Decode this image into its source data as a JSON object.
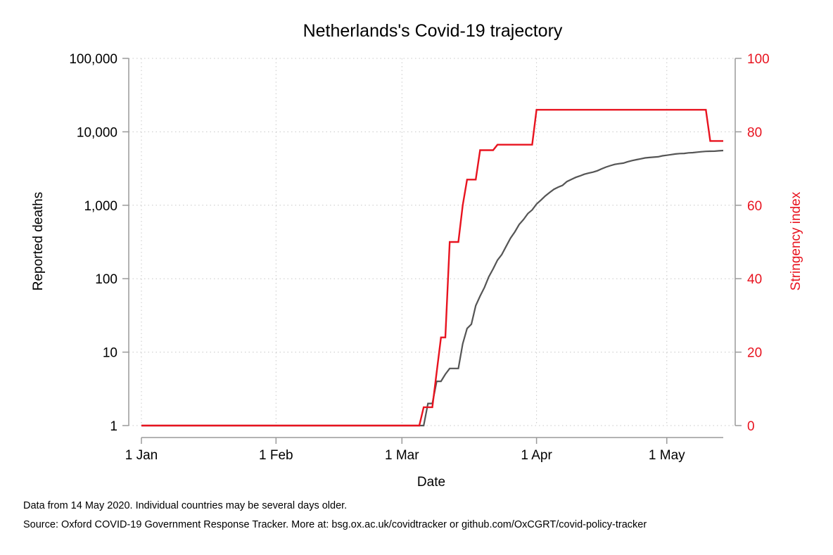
{
  "chart_data": {
    "type": "line",
    "title": "Netherlands's Covid-19 trajectory",
    "xlabel": "Date",
    "ylabel_left": "Reported deaths",
    "ylabel_right": "Stringency index",
    "x_start": "2020-01-01",
    "x_end": "2020-05-14",
    "x_ticks": [
      {
        "date": "2020-01-01",
        "label": "1 Jan"
      },
      {
        "date": "2020-02-01",
        "label": "1 Feb"
      },
      {
        "date": "2020-03-01",
        "label": "1 Mar"
      },
      {
        "date": "2020-04-01",
        "label": "1 Apr"
      },
      {
        "date": "2020-05-01",
        "label": "1 May"
      }
    ],
    "y_left": {
      "scale": "log",
      "range": [
        1,
        100000
      ],
      "ticks": [
        {
          "value": 1,
          "label": "1"
        },
        {
          "value": 10,
          "label": "10"
        },
        {
          "value": 100,
          "label": "100"
        },
        {
          "value": 1000,
          "label": "1,000"
        },
        {
          "value": 10000,
          "label": "10,000"
        },
        {
          "value": 100000,
          "label": "100,000"
        }
      ]
    },
    "y_right": {
      "scale": "linear",
      "range": [
        0,
        100
      ],
      "ticks": [
        {
          "value": 0,
          "label": "0"
        },
        {
          "value": 20,
          "label": "20"
        },
        {
          "value": 40,
          "label": "40"
        },
        {
          "value": 60,
          "label": "60"
        },
        {
          "value": 80,
          "label": "80"
        },
        {
          "value": 100,
          "label": "100"
        }
      ]
    },
    "grid": true,
    "colors": {
      "deaths": "#555555",
      "stringency": "#e8131f",
      "axis_right": "#e8131f"
    },
    "series": [
      {
        "axis": "left",
        "color": "#555555",
        "points": [
          [
            "2020-01-01",
            1
          ],
          [
            "2020-03-06",
            1
          ],
          [
            "2020-03-07",
            2
          ],
          [
            "2020-03-08",
            2
          ],
          [
            "2020-03-09",
            4
          ],
          [
            "2020-03-10",
            4
          ],
          [
            "2020-03-11",
            5
          ],
          [
            "2020-03-12",
            6
          ],
          [
            "2020-03-13",
            6
          ],
          [
            "2020-03-14",
            6
          ],
          [
            "2020-03-15",
            13
          ],
          [
            "2020-03-16",
            21
          ],
          [
            "2020-03-17",
            24
          ],
          [
            "2020-03-18",
            43
          ],
          [
            "2020-03-19",
            58
          ],
          [
            "2020-03-20",
            76
          ],
          [
            "2020-03-21",
            106
          ],
          [
            "2020-03-22",
            136
          ],
          [
            "2020-03-23",
            179
          ],
          [
            "2020-03-24",
            213
          ],
          [
            "2020-03-25",
            276
          ],
          [
            "2020-03-26",
            356
          ],
          [
            "2020-03-27",
            434
          ],
          [
            "2020-03-28",
            546
          ],
          [
            "2020-03-29",
            639
          ],
          [
            "2020-03-30",
            771
          ],
          [
            "2020-03-31",
            864
          ],
          [
            "2020-04-01",
            1039
          ],
          [
            "2020-04-02",
            1173
          ],
          [
            "2020-04-03",
            1339
          ],
          [
            "2020-04-04",
            1487
          ],
          [
            "2020-04-05",
            1651
          ],
          [
            "2020-04-06",
            1766
          ],
          [
            "2020-04-07",
            1867
          ],
          [
            "2020-04-08",
            2101
          ],
          [
            "2020-04-09",
            2248
          ],
          [
            "2020-04-10",
            2396
          ],
          [
            "2020-04-11",
            2511
          ],
          [
            "2020-04-12",
            2643
          ],
          [
            "2020-04-13",
            2737
          ],
          [
            "2020-04-14",
            2823
          ],
          [
            "2020-04-15",
            2945
          ],
          [
            "2020-04-16",
            3134
          ],
          [
            "2020-04-17",
            3315
          ],
          [
            "2020-04-18",
            3459
          ],
          [
            "2020-04-19",
            3601
          ],
          [
            "2020-04-20",
            3684
          ],
          [
            "2020-04-21",
            3751
          ],
          [
            "2020-04-22",
            3916
          ],
          [
            "2020-04-23",
            4054
          ],
          [
            "2020-04-24",
            4177
          ],
          [
            "2020-04-25",
            4289
          ],
          [
            "2020-04-26",
            4409
          ],
          [
            "2020-04-27",
            4475
          ],
          [
            "2020-04-28",
            4518
          ],
          [
            "2020-04-29",
            4566
          ],
          [
            "2020-04-30",
            4711
          ],
          [
            "2020-05-01",
            4795
          ],
          [
            "2020-05-02",
            4893
          ],
          [
            "2020-05-03",
            4987
          ],
          [
            "2020-05-04",
            5056
          ],
          [
            "2020-05-05",
            5082
          ],
          [
            "2020-05-06",
            5168
          ],
          [
            "2020-05-07",
            5204
          ],
          [
            "2020-05-08",
            5288
          ],
          [
            "2020-05-09",
            5359
          ],
          [
            "2020-05-10",
            5422
          ],
          [
            "2020-05-11",
            5440
          ],
          [
            "2020-05-12",
            5456
          ],
          [
            "2020-05-13",
            5510
          ],
          [
            "2020-05-14",
            5562
          ]
        ]
      },
      {
        "axis": "right",
        "color": "#e8131f",
        "points": [
          [
            "2020-01-01",
            0
          ],
          [
            "2020-03-05",
            0
          ],
          [
            "2020-03-06",
            5
          ],
          [
            "2020-03-08",
            5
          ],
          [
            "2020-03-10",
            24
          ],
          [
            "2020-03-11",
            24
          ],
          [
            "2020-03-12",
            50
          ],
          [
            "2020-03-14",
            50
          ],
          [
            "2020-03-15",
            60
          ],
          [
            "2020-03-16",
            67
          ],
          [
            "2020-03-18",
            67
          ],
          [
            "2020-03-19",
            75
          ],
          [
            "2020-03-22",
            75
          ],
          [
            "2020-03-23",
            76.5
          ],
          [
            "2020-03-31",
            76.5
          ],
          [
            "2020-04-01",
            86
          ],
          [
            "2020-05-10",
            86
          ],
          [
            "2020-05-11",
            77.5
          ],
          [
            "2020-05-14",
            77.5
          ]
        ]
      }
    ]
  },
  "notes": [
    "Data from 14 May 2020. Individual countries may be several days older.",
    "Source: Oxford COVID-19 Government Response Tracker. More at: bsg.ox.ac.uk/covidtracker or github.com/OxCGRT/covid-policy-tracker"
  ]
}
